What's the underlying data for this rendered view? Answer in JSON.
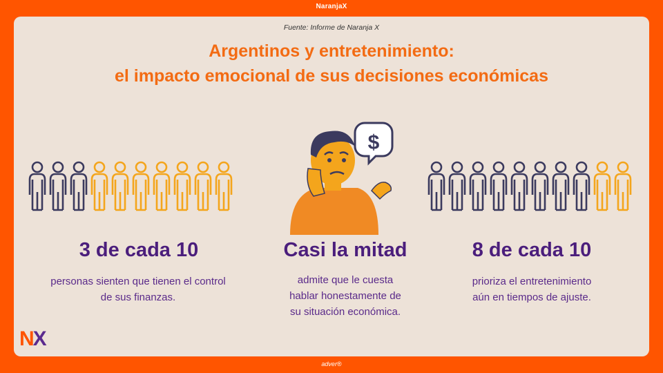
{
  "brand": {
    "top": "NaranjaX",
    "bottom": "adver®",
    "logo_n": "N",
    "logo_x": "X"
  },
  "source": "Fuente: Informe de Naranja X",
  "title": {
    "line1": "Argentinos y entretenimiento:",
    "line2": "el impacto emocional de sus decisiones económicas"
  },
  "colors": {
    "orange": "#f36b13",
    "purple": "#4b1e7c",
    "gold": "#f4a51c",
    "navy": "#3b3a5e",
    "background": "#ff5500",
    "card": "#ede2d8"
  },
  "stats": [
    {
      "headline": "3 de cada 10",
      "lines": [
        "personas sienten que tienen el control",
        "de sus finanzas."
      ],
      "highlighted": 3,
      "total": 10,
      "highlight_side": "left"
    },
    {
      "headline": "Casi la mitad",
      "lines": [
        "admite que le cuesta",
        "hablar honestamente de",
        "su situación económica."
      ],
      "icon": "worried-person-icon"
    },
    {
      "headline": "8 de cada 10",
      "lines": [
        "prioriza el entretenimiento",
        "aún en tiempos de ajuste."
      ],
      "highlighted": 8,
      "total": 10,
      "highlight_side": "left"
    }
  ]
}
